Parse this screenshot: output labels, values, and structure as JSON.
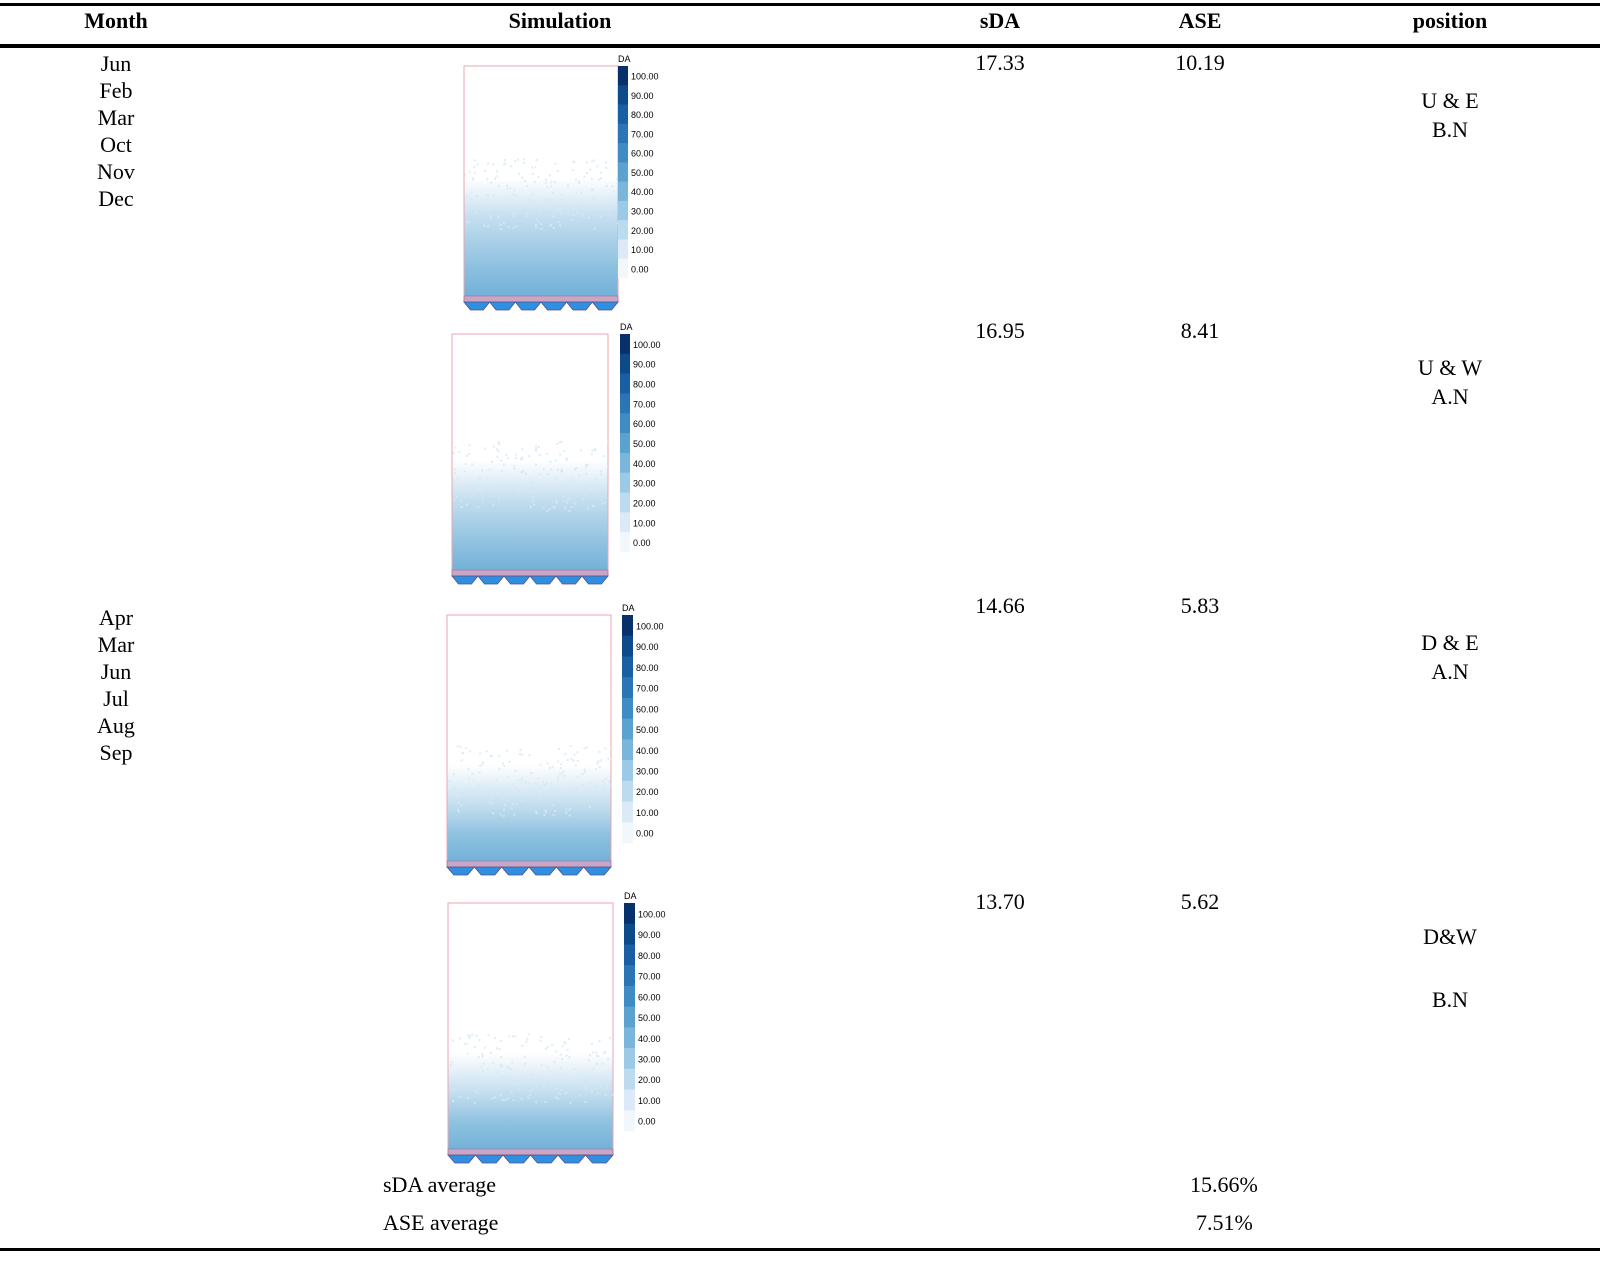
{
  "table": {
    "headers": {
      "month": "Month",
      "simulation": "Simulation",
      "sda": "sDA",
      "ase": "ASE",
      "position": "position"
    },
    "month_groups": [
      [
        "Jun",
        "Feb",
        "Mar",
        "Oct",
        "Nov",
        "Dec"
      ],
      [
        "Apr",
        "Mar",
        "Jun",
        "Jul",
        "Aug",
        "Sep"
      ]
    ],
    "rows": [
      {
        "sda": "17.33",
        "ase": "10.19",
        "position_line1": "U & E",
        "position_line2": "B.N"
      },
      {
        "sda": "16.95",
        "ase": "8.41",
        "position_line1": "U & W",
        "position_line2": "A.N"
      },
      {
        "sda": "14.66",
        "ase": "5.83",
        "position_line1": "D & E",
        "position_line2": "A.N"
      },
      {
        "sda": "13.70",
        "ase": "5.62",
        "position_line1": "D&W",
        "position_line2": "B.N"
      }
    ],
    "legend": {
      "title": "DA",
      "ticks": [
        "100.00",
        "90.00",
        "80.00",
        "70.00",
        "60.00",
        "50.00",
        "40.00",
        "30.00",
        "20.00",
        "10.00",
        "0.00"
      ],
      "colors": [
        "#08306b",
        "#0d4a8a",
        "#1a5fa3",
        "#2b75b5",
        "#3f8bc4",
        "#5ba2d1",
        "#7ab6dc",
        "#9ccae6",
        "#bddbef",
        "#dbeaf6",
        "#f2f7fc"
      ]
    },
    "footer": {
      "sda_avg_label": "sDA average",
      "sda_avg_value": "15.66%",
      "ase_avg_label": "ASE average",
      "ase_avg_value": "7.51%"
    }
  }
}
